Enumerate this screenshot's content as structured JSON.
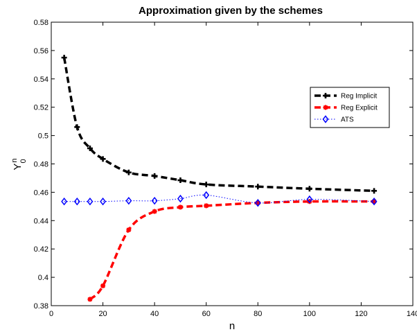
{
  "chart_data": {
    "type": "line",
    "title": "Approximation given by the schemes",
    "xlabel": "n",
    "ylabel": "Y",
    "ylabel_sup": "n",
    "ylabel_sub": "0",
    "xlim": [
      0,
      140
    ],
    "ylim": [
      0.38,
      0.58
    ],
    "x_ticks": [
      0,
      20,
      40,
      60,
      80,
      100,
      120,
      140
    ],
    "y_ticks": [
      0.38,
      0.4,
      0.42,
      0.44,
      0.46,
      0.48,
      0.5,
      0.52,
      0.54,
      0.56,
      0.58
    ],
    "grid": false,
    "legend_position": "upper-right",
    "series": [
      {
        "name": "Reg Implicit",
        "color": "#000000",
        "line_style": "dashed",
        "marker": "plus",
        "x": [
          5,
          10,
          15,
          20,
          30,
          40,
          50,
          60,
          80,
          100,
          125
        ],
        "y": [
          0.555,
          0.506,
          0.491,
          0.4835,
          0.474,
          0.4715,
          0.4685,
          0.4655,
          0.464,
          0.4625,
          0.461
        ]
      },
      {
        "name": "Reg Explicit",
        "color": "#ff0000",
        "line_style": "dashed",
        "marker": "asterisk",
        "x": [
          15,
          20,
          30,
          40,
          50,
          60,
          80,
          100,
          125
        ],
        "y": [
          0.3845,
          0.394,
          0.4335,
          0.4465,
          0.4495,
          0.4505,
          0.4525,
          0.4535,
          0.4535
        ]
      },
      {
        "name": "ATS",
        "color": "#0000ff",
        "line_style": "dotted",
        "marker": "diamond",
        "x": [
          5,
          10,
          15,
          20,
          30,
          40,
          50,
          60,
          80,
          100,
          125
        ],
        "y": [
          0.4535,
          0.4535,
          0.4535,
          0.4535,
          0.454,
          0.454,
          0.4555,
          0.458,
          0.4525,
          0.455,
          0.4535
        ]
      }
    ]
  }
}
